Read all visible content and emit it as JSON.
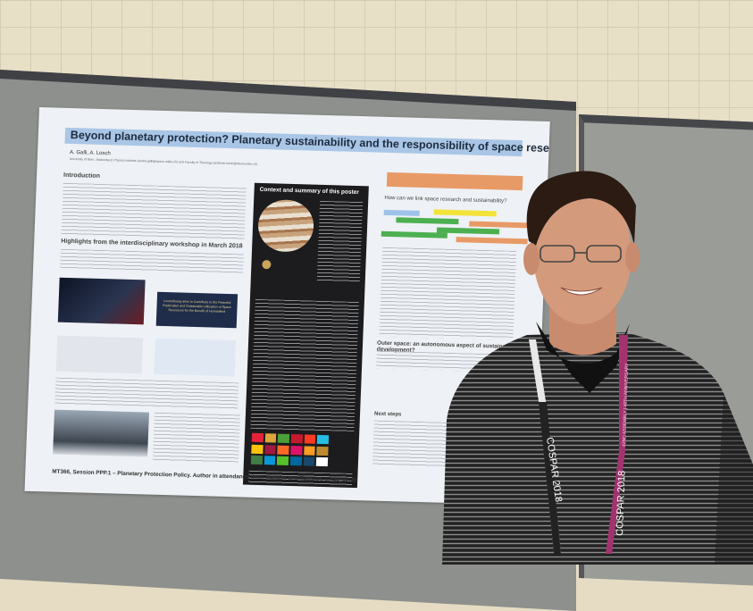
{
  "poster": {
    "title": "Beyond planetary protection? Planetary sustainability and the responsibility of space research",
    "authors": "A. Galli, A. Losch",
    "affiliation": "University of Bern, Switzerland, Physics Institute (andre.galli@space.unibe.ch) and Faculty of Theology (andreas.losch@theol.unibe.ch)",
    "sections": {
      "introduction": "Introduction",
      "highlights": "Highlights from the interdisciplinary workshop in March 2018",
      "context": "Context and summary of this poster",
      "link": "How can we link space research and sustainability?",
      "outer_space": "Outer space: an autonomous aspect of sustainable development?",
      "next_steps": "Next steps"
    },
    "luxembourg_slide": "Luxembourg aims to Contribute to the Peaceful Exploration and Sustainable Utilization of Space Resources for the Benefit of Humankind",
    "footer": "MT366, Session PPP.1 – Planetary Protection Policy. Author in attendance time: Monday and Tuesday, 17:30–19:30"
  },
  "lanyard": {
    "brand": "COSPAR 2018",
    "text": "42ND ASSEMBLY | 49TH ANNIVERSARY"
  },
  "colors": {
    "title_bar": "#a9c6e6",
    "highlight_orange": "#e89a66",
    "highlight_green": "#4caf50",
    "highlight_yellow": "#f3e33a",
    "lanyard_magenta": "#a3336f"
  }
}
